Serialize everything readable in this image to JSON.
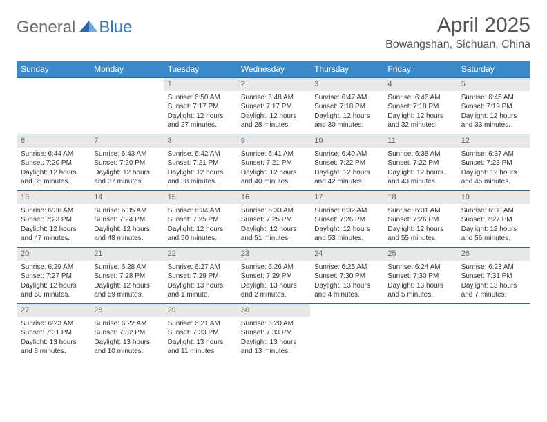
{
  "brand": {
    "part1": "General",
    "part2": "Blue"
  },
  "title": "April 2025",
  "location": "Bowangshan, Sichuan, China",
  "styling": {
    "header_bg": "#3a8ac9",
    "header_fg": "#ffffff",
    "border_color": "#2d6aa3",
    "daynum_bg": "#e8e8e8",
    "brand_gray": "#6a6a6a",
    "brand_blue": "#3a7ab8",
    "title_fontsize": 30,
    "location_fontsize": 16,
    "th_fontsize": 12,
    "cell_fontsize": 10
  },
  "day_labels": [
    "Sunday",
    "Monday",
    "Tuesday",
    "Wednesday",
    "Thursday",
    "Friday",
    "Saturday"
  ],
  "weeks": [
    [
      null,
      null,
      {
        "n": "1",
        "sr": "Sunrise: 6:50 AM",
        "ss": "Sunset: 7:17 PM",
        "d1": "Daylight: 12 hours",
        "d2": "and 27 minutes."
      },
      {
        "n": "2",
        "sr": "Sunrise: 6:48 AM",
        "ss": "Sunset: 7:17 PM",
        "d1": "Daylight: 12 hours",
        "d2": "and 28 minutes."
      },
      {
        "n": "3",
        "sr": "Sunrise: 6:47 AM",
        "ss": "Sunset: 7:18 PM",
        "d1": "Daylight: 12 hours",
        "d2": "and 30 minutes."
      },
      {
        "n": "4",
        "sr": "Sunrise: 6:46 AM",
        "ss": "Sunset: 7:18 PM",
        "d1": "Daylight: 12 hours",
        "d2": "and 32 minutes."
      },
      {
        "n": "5",
        "sr": "Sunrise: 6:45 AM",
        "ss": "Sunset: 7:19 PM",
        "d1": "Daylight: 12 hours",
        "d2": "and 33 minutes."
      }
    ],
    [
      {
        "n": "6",
        "sr": "Sunrise: 6:44 AM",
        "ss": "Sunset: 7:20 PM",
        "d1": "Daylight: 12 hours",
        "d2": "and 35 minutes."
      },
      {
        "n": "7",
        "sr": "Sunrise: 6:43 AM",
        "ss": "Sunset: 7:20 PM",
        "d1": "Daylight: 12 hours",
        "d2": "and 37 minutes."
      },
      {
        "n": "8",
        "sr": "Sunrise: 6:42 AM",
        "ss": "Sunset: 7:21 PM",
        "d1": "Daylight: 12 hours",
        "d2": "and 38 minutes."
      },
      {
        "n": "9",
        "sr": "Sunrise: 6:41 AM",
        "ss": "Sunset: 7:21 PM",
        "d1": "Daylight: 12 hours",
        "d2": "and 40 minutes."
      },
      {
        "n": "10",
        "sr": "Sunrise: 6:40 AM",
        "ss": "Sunset: 7:22 PM",
        "d1": "Daylight: 12 hours",
        "d2": "and 42 minutes."
      },
      {
        "n": "11",
        "sr": "Sunrise: 6:38 AM",
        "ss": "Sunset: 7:22 PM",
        "d1": "Daylight: 12 hours",
        "d2": "and 43 minutes."
      },
      {
        "n": "12",
        "sr": "Sunrise: 6:37 AM",
        "ss": "Sunset: 7:23 PM",
        "d1": "Daylight: 12 hours",
        "d2": "and 45 minutes."
      }
    ],
    [
      {
        "n": "13",
        "sr": "Sunrise: 6:36 AM",
        "ss": "Sunset: 7:23 PM",
        "d1": "Daylight: 12 hours",
        "d2": "and 47 minutes."
      },
      {
        "n": "14",
        "sr": "Sunrise: 6:35 AM",
        "ss": "Sunset: 7:24 PM",
        "d1": "Daylight: 12 hours",
        "d2": "and 48 minutes."
      },
      {
        "n": "15",
        "sr": "Sunrise: 6:34 AM",
        "ss": "Sunset: 7:25 PM",
        "d1": "Daylight: 12 hours",
        "d2": "and 50 minutes."
      },
      {
        "n": "16",
        "sr": "Sunrise: 6:33 AM",
        "ss": "Sunset: 7:25 PM",
        "d1": "Daylight: 12 hours",
        "d2": "and 51 minutes."
      },
      {
        "n": "17",
        "sr": "Sunrise: 6:32 AM",
        "ss": "Sunset: 7:26 PM",
        "d1": "Daylight: 12 hours",
        "d2": "and 53 minutes."
      },
      {
        "n": "18",
        "sr": "Sunrise: 6:31 AM",
        "ss": "Sunset: 7:26 PM",
        "d1": "Daylight: 12 hours",
        "d2": "and 55 minutes."
      },
      {
        "n": "19",
        "sr": "Sunrise: 6:30 AM",
        "ss": "Sunset: 7:27 PM",
        "d1": "Daylight: 12 hours",
        "d2": "and 56 minutes."
      }
    ],
    [
      {
        "n": "20",
        "sr": "Sunrise: 6:29 AM",
        "ss": "Sunset: 7:27 PM",
        "d1": "Daylight: 12 hours",
        "d2": "and 58 minutes."
      },
      {
        "n": "21",
        "sr": "Sunrise: 6:28 AM",
        "ss": "Sunset: 7:28 PM",
        "d1": "Daylight: 12 hours",
        "d2": "and 59 minutes."
      },
      {
        "n": "22",
        "sr": "Sunrise: 6:27 AM",
        "ss": "Sunset: 7:29 PM",
        "d1": "Daylight: 13 hours",
        "d2": "and 1 minute."
      },
      {
        "n": "23",
        "sr": "Sunrise: 6:26 AM",
        "ss": "Sunset: 7:29 PM",
        "d1": "Daylight: 13 hours",
        "d2": "and 2 minutes."
      },
      {
        "n": "24",
        "sr": "Sunrise: 6:25 AM",
        "ss": "Sunset: 7:30 PM",
        "d1": "Daylight: 13 hours",
        "d2": "and 4 minutes."
      },
      {
        "n": "25",
        "sr": "Sunrise: 6:24 AM",
        "ss": "Sunset: 7:30 PM",
        "d1": "Daylight: 13 hours",
        "d2": "and 5 minutes."
      },
      {
        "n": "26",
        "sr": "Sunrise: 6:23 AM",
        "ss": "Sunset: 7:31 PM",
        "d1": "Daylight: 13 hours",
        "d2": "and 7 minutes."
      }
    ],
    [
      {
        "n": "27",
        "sr": "Sunrise: 6:23 AM",
        "ss": "Sunset: 7:31 PM",
        "d1": "Daylight: 13 hours",
        "d2": "and 8 minutes."
      },
      {
        "n": "28",
        "sr": "Sunrise: 6:22 AM",
        "ss": "Sunset: 7:32 PM",
        "d1": "Daylight: 13 hours",
        "d2": "and 10 minutes."
      },
      {
        "n": "29",
        "sr": "Sunrise: 6:21 AM",
        "ss": "Sunset: 7:33 PM",
        "d1": "Daylight: 13 hours",
        "d2": "and 11 minutes."
      },
      {
        "n": "30",
        "sr": "Sunrise: 6:20 AM",
        "ss": "Sunset: 7:33 PM",
        "d1": "Daylight: 13 hours",
        "d2": "and 13 minutes."
      },
      null,
      null,
      null
    ]
  ]
}
